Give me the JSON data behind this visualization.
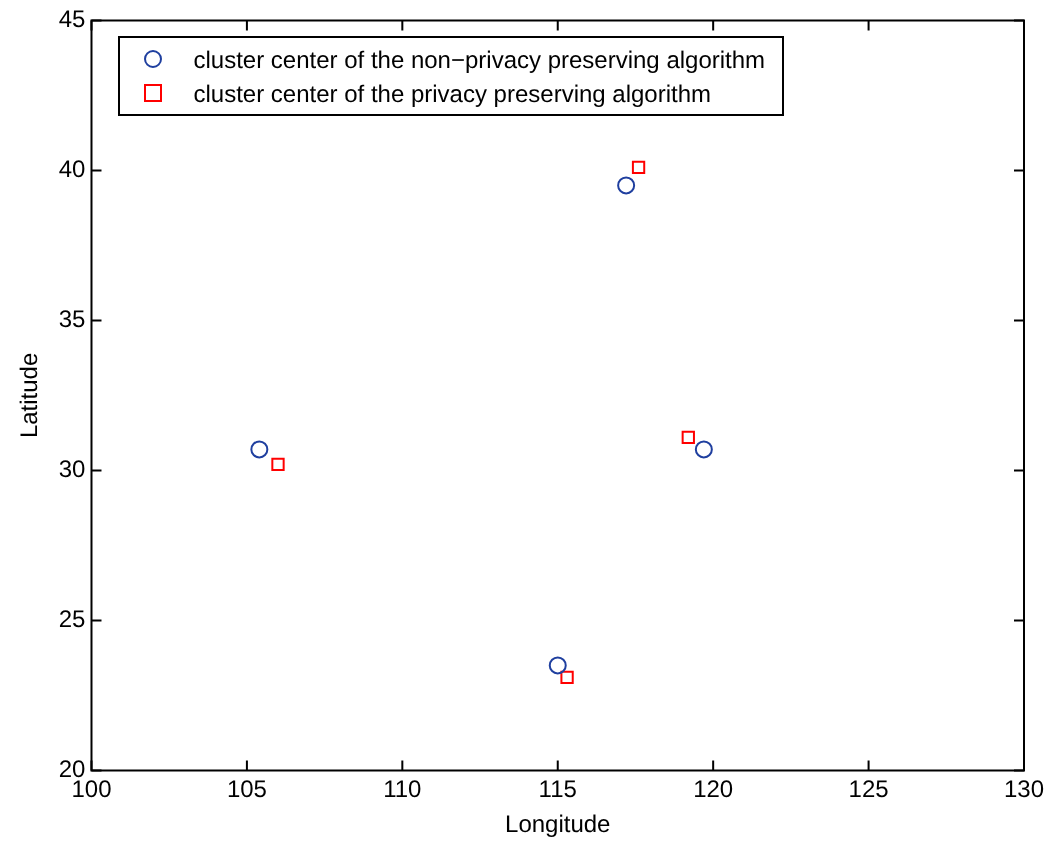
{
  "chart_data": {
    "type": "scatter",
    "xlabel": "Longitude",
    "ylabel": "Latitude",
    "xlim": [
      100,
      130
    ],
    "xticks": [
      100,
      105,
      110,
      115,
      120,
      125,
      130
    ],
    "ylim": [
      20,
      45
    ],
    "yticks": [
      20,
      25,
      30,
      35,
      40,
      45
    ],
    "grid": false,
    "legend": "top left",
    "series": [
      {
        "name": "cluster center of the non−privacy preserving algorithm",
        "color": "#1f3f9f",
        "marker": "circle",
        "x": [
          105.4,
          117.2,
          119.7,
          115.0
        ],
        "values": [
          30.7,
          39.5,
          30.7,
          23.5
        ]
      },
      {
        "name": "cluster center of the privacy preserving algorithm",
        "color": "#ff0000",
        "marker": "square",
        "x": [
          106.0,
          117.6,
          119.2,
          115.3
        ],
        "values": [
          30.2,
          40.1,
          31.1,
          23.1
        ]
      }
    ]
  }
}
